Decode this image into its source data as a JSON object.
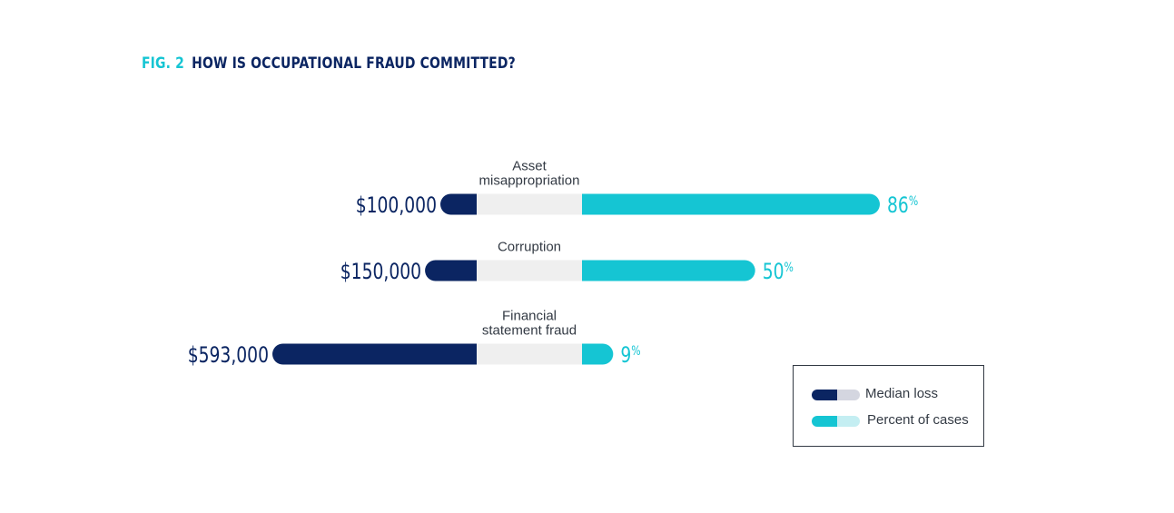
{
  "figure": {
    "number": "FIG. 2",
    "title": "HOW IS OCCUPATIONAL FRAUD COMMITTED?"
  },
  "colors": {
    "median_loss": "#0b2562",
    "median_loss_light": "#d4d6e0",
    "percent_cases": "#15c5d3",
    "percent_cases_light": "#c4eef2",
    "track": "#efefef",
    "category_text": "#333a44"
  },
  "chart_data": {
    "type": "bar",
    "categories": [
      "Asset misappropriation",
      "Corruption",
      "Financial statement fraud"
    ],
    "category_lines": [
      [
        "Asset",
        "misappropriation"
      ],
      [
        "Corruption"
      ],
      [
        "Financial",
        "statement fraud"
      ]
    ],
    "series": [
      {
        "name": "Median loss",
        "values": [
          100000,
          150000,
          593000
        ],
        "labels": [
          "$100,000",
          "$150,000",
          "$593,000"
        ]
      },
      {
        "name": "Percent of cases",
        "values": [
          86,
          50,
          9
        ],
        "labels": [
          "86",
          "50",
          "9"
        ],
        "unit": "%"
      }
    ]
  },
  "legend": {
    "items": [
      "Median loss",
      "Percent of cases"
    ]
  }
}
